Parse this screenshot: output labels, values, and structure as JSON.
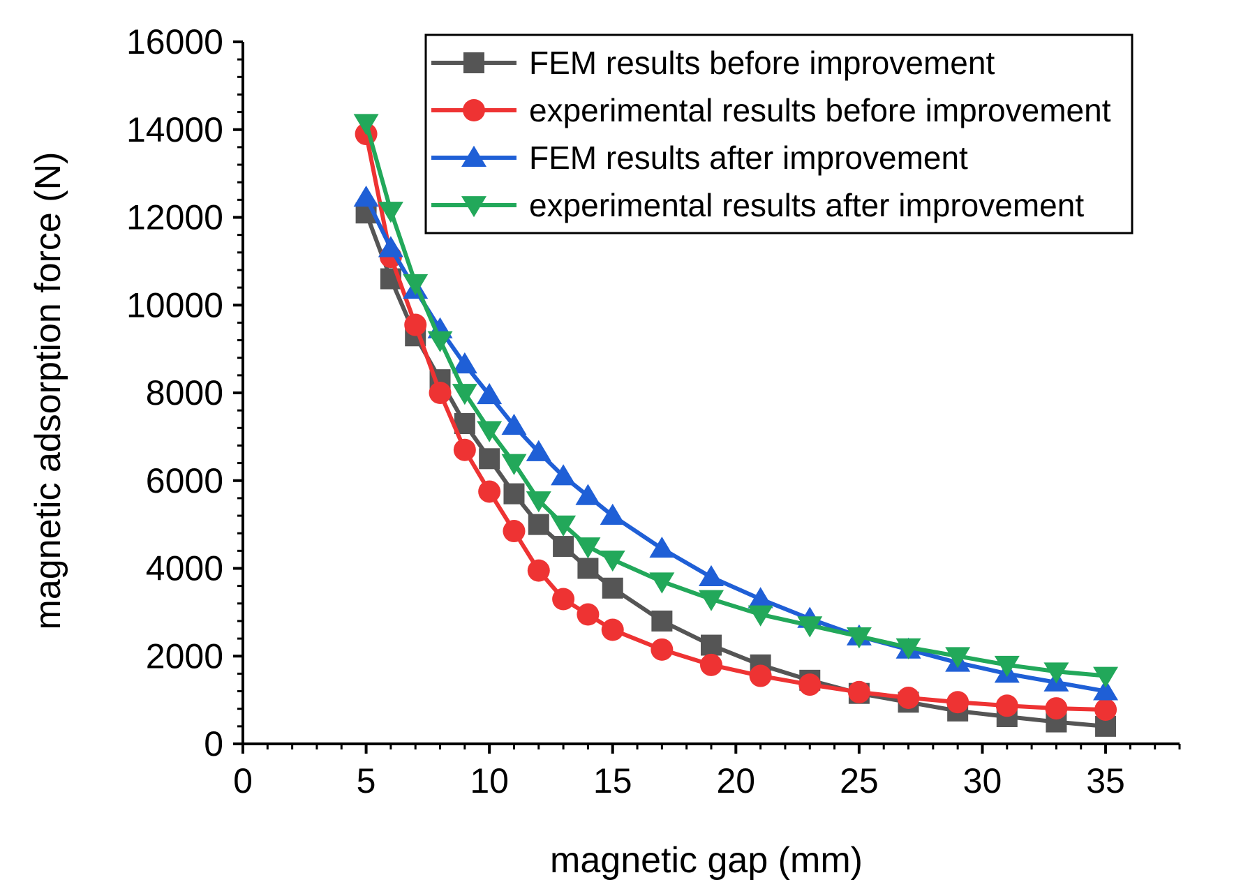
{
  "chart_data": {
    "type": "line",
    "title": "",
    "xlabel": "magnetic gap (mm)",
    "ylabel": "magnetic adsorption force (N)",
    "xlim": [
      0,
      38
    ],
    "ylim": [
      0,
      16000
    ],
    "x_ticks": [
      0,
      5,
      10,
      15,
      20,
      25,
      30,
      35
    ],
    "x_tick_labels": [
      "0",
      "5",
      "10",
      "15",
      "20",
      "25",
      "30",
      "35"
    ],
    "y_ticks": [
      0,
      2000,
      4000,
      6000,
      8000,
      10000,
      12000,
      14000,
      16000
    ],
    "y_tick_labels": [
      "0",
      "2000",
      "4000",
      "6000",
      "8000",
      "10000",
      "12000",
      "14000",
      "16000"
    ],
    "grid": false,
    "legend_position": "top-right",
    "x": [
      5,
      6,
      7,
      8,
      9,
      10,
      11,
      12,
      13,
      14,
      15,
      17,
      19,
      21,
      23,
      25,
      27,
      29,
      31,
      33,
      35
    ],
    "series": [
      {
        "name": "FEM results before improvement",
        "color": "#555555",
        "marker": "square",
        "values": [
          12100,
          10600,
          9300,
          8300,
          7300,
          6500,
          5700,
          5000,
          4500,
          4000,
          3550,
          2800,
          2250,
          1800,
          1450,
          1150,
          950,
          750,
          620,
          500,
          400
        ]
      },
      {
        "name": "experimental results before improvement",
        "color": "#ee3333",
        "marker": "circle",
        "values": [
          13900,
          11100,
          9550,
          8000,
          6700,
          5750,
          4850,
          3950,
          3300,
          2950,
          2600,
          2150,
          1800,
          1550,
          1350,
          1180,
          1050,
          950,
          870,
          810,
          780
        ]
      },
      {
        "name": "FEM results after improvement",
        "color": "#1f5fd6",
        "marker": "triangle-up",
        "values": [
          12450,
          11300,
          10350,
          9450,
          8650,
          7950,
          7250,
          6650,
          6100,
          5650,
          5200,
          4450,
          3800,
          3300,
          2850,
          2450,
          2150,
          1850,
          1600,
          1400,
          1200
        ]
      },
      {
        "name": "experimental results after improvement",
        "color": "#22a85a",
        "marker": "triangle-down",
        "values": [
          14150,
          12150,
          10500,
          9200,
          8000,
          7150,
          6400,
          5550,
          5000,
          4500,
          4200,
          3700,
          3300,
          2950,
          2700,
          2450,
          2200,
          2000,
          1800,
          1650,
          1550
        ]
      }
    ]
  }
}
